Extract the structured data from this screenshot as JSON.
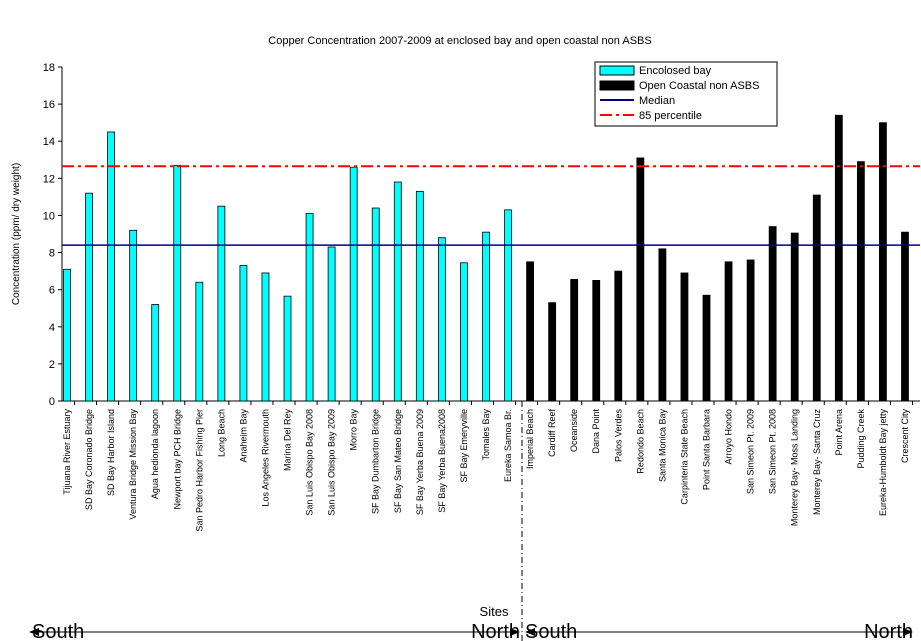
{
  "chart_data": {
    "type": "bar",
    "title": "Copper Concentration 2007-2009 at enclosed bay and open coastal non ASBS",
    "y_label": "Concentration (ppm/ dry weight)",
    "x_label": "Sites",
    "categories": [
      "Tijuana River Estuary",
      "SD Bay Coronado Bridge",
      "SD Bay Harbor Island",
      "Ventura Bridge Mission Bay",
      "Agua hedionda lagoon",
      "Newport bay PCH Bridge",
      "San Pedro Harbor Fishing Pier",
      "Long Beach",
      "Anaheim Bay",
      "Los Angeles Rivermouth",
      "Marina Del Rey",
      "San Luis Obispo Bay 2008",
      "San Luis Obispo Bay 2009",
      "Morro Bay",
      "SF Bay Dumbarton Bridge",
      "SF Bay San Mateo Bridge",
      "SF Bay Yerba Buena 2009",
      "SF Bay Yerba Buena2008",
      "SF Bay Emeryville",
      "Tomales Bay",
      "Eureka Samoa Br.",
      "Imperial Beach",
      "Cardiff Reef",
      "Oceanside",
      "Dana Point",
      "Palos Verdes",
      "Redondo Beach",
      "Santa Monica Bay",
      "Carpinteria State Beach",
      "Point Santa Barbara",
      "Arroyo Hondo",
      "San Simeon Pt. 2009",
      "San Simeon Pt. 2008",
      "Monterey Bay- Moss Landing",
      "Monterey Bay- Santa Cruz",
      "Point Arena",
      "Pudding Creek",
      "Eureka-Humboldt Bay jetty",
      "Crescent City"
    ],
    "series": [
      {
        "name": "Encolosed bay",
        "color": "#00ffff",
        "values": [
          7.1,
          11.2,
          14.5,
          9.2,
          5.2,
          12.7,
          6.4,
          10.5,
          7.3,
          6.9,
          5.65,
          10.1,
          8.3,
          12.6,
          10.4,
          11.8,
          11.3,
          8.8,
          7.45,
          9.1,
          10.3,
          null,
          null,
          null,
          null,
          null,
          null,
          null,
          null,
          null,
          null,
          null,
          null,
          null,
          null,
          null,
          null,
          null,
          null
        ]
      },
      {
        "name": "Open Coastal non ASBS",
        "color": "#000000",
        "values": [
          null,
          null,
          null,
          null,
          null,
          null,
          null,
          null,
          null,
          null,
          null,
          null,
          null,
          null,
          null,
          null,
          null,
          null,
          null,
          null,
          null,
          7.5,
          5.3,
          6.55,
          6.5,
          7.0,
          13.1,
          8.2,
          6.9,
          5.7,
          7.5,
          7.6,
          9.4,
          9.05,
          11.1,
          15.4,
          12.9,
          15.0,
          9.1
        ]
      }
    ],
    "reference_lines": [
      {
        "name": "Median",
        "value": 8.4,
        "color": "#000080",
        "dash": "solid"
      },
      {
        "name": "85 percentile",
        "value": 12.65,
        "color": "#ff0000",
        "dash": "dashdot"
      }
    ],
    "ylim": [
      0,
      18
    ],
    "yticks": [
      0,
      2,
      4,
      6,
      8,
      10,
      12,
      14,
      16,
      18
    ],
    "annotations": [
      "South",
      "North",
      "South",
      "North"
    ],
    "legend": "upper right"
  }
}
